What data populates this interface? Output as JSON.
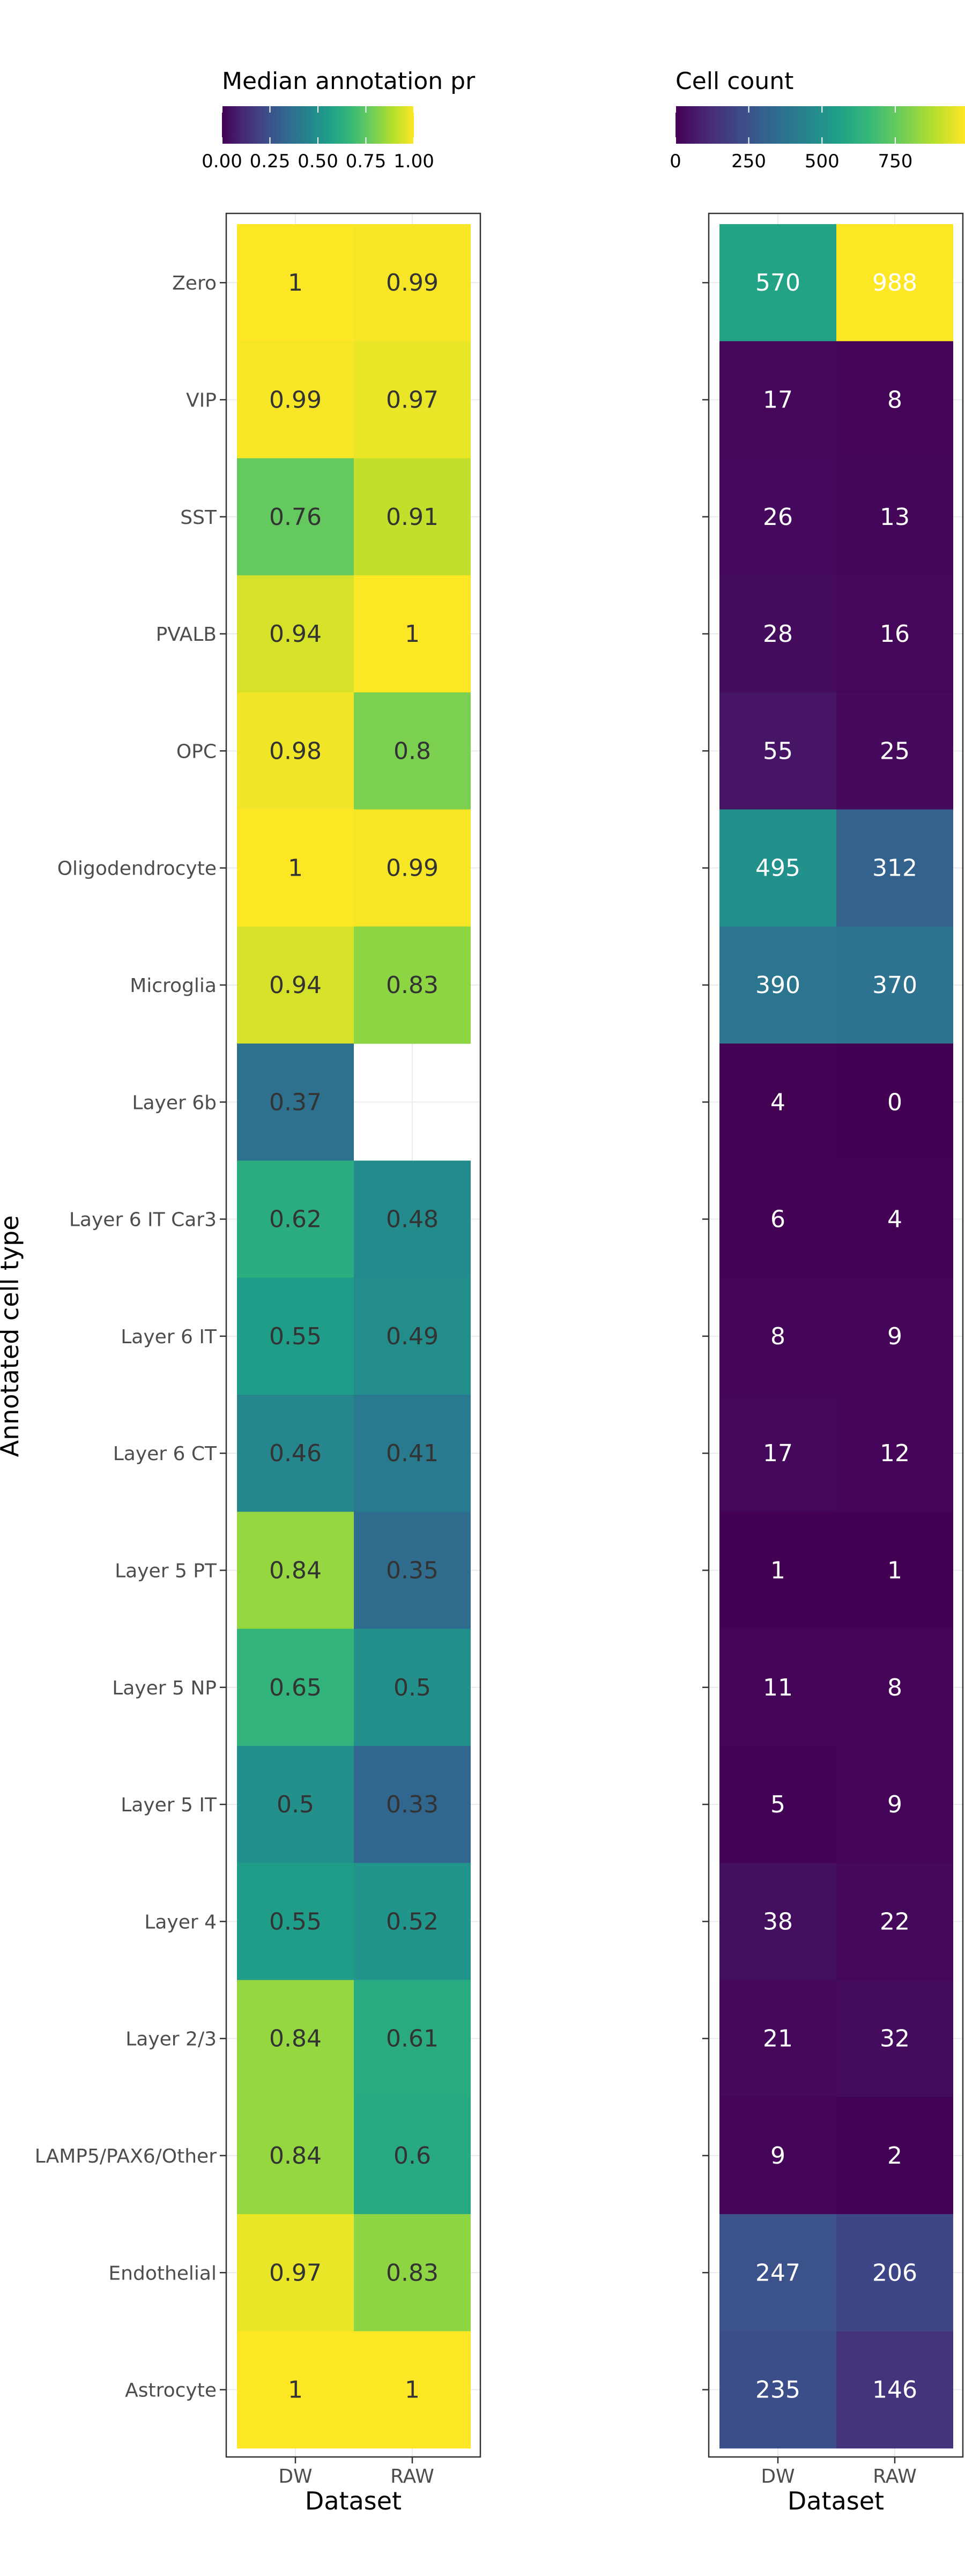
{
  "chart_data": [
    {
      "type": "heatmap",
      "title": "",
      "xlabel": "Dataset",
      "ylabel": "Annotated cell type",
      "x": [
        "DW",
        "RAW"
      ],
      "y": [
        "Zero",
        "VIP",
        "SST",
        "PVALB",
        "OPC",
        "Oligodendrocyte",
        "Microglia",
        "Layer 6b",
        "Layer 6 IT Car3",
        "Layer 6 IT",
        "Layer 6 CT",
        "Layer 5 PT",
        "Layer 5 NP",
        "Layer 5 IT",
        "Layer 4",
        "Layer 2/3",
        "LAMP5/PAX6/Other",
        "Endothelial",
        "Astrocyte"
      ],
      "values": [
        [
          1,
          0.99
        ],
        [
          0.99,
          0.97
        ],
        [
          0.76,
          0.91
        ],
        [
          0.94,
          1
        ],
        [
          0.98,
          0.8
        ],
        [
          1,
          0.99
        ],
        [
          0.94,
          0.83
        ],
        [
          0.37,
          null
        ],
        [
          0.62,
          0.48
        ],
        [
          0.55,
          0.49
        ],
        [
          0.46,
          0.41
        ],
        [
          0.84,
          0.35
        ],
        [
          0.65,
          0.5
        ],
        [
          0.5,
          0.33
        ],
        [
          0.55,
          0.52
        ],
        [
          0.84,
          0.61
        ],
        [
          0.84,
          0.6
        ],
        [
          0.97,
          0.83
        ],
        [
          1,
          1
        ]
      ],
      "labels": [
        [
          "1",
          "0.99"
        ],
        [
          "0.99",
          "0.97"
        ],
        [
          "0.76",
          "0.91"
        ],
        [
          "0.94",
          "1"
        ],
        [
          "0.98",
          "0.8"
        ],
        [
          "1",
          "0.99"
        ],
        [
          "0.94",
          "0.83"
        ],
        [
          "0.37",
          ""
        ],
        [
          "0.62",
          "0.48"
        ],
        [
          "0.55",
          "0.49"
        ],
        [
          "0.46",
          "0.41"
        ],
        [
          "0.84",
          "0.35"
        ],
        [
          "0.65",
          "0.5"
        ],
        [
          "0.5",
          "0.33"
        ],
        [
          "0.55",
          "0.52"
        ],
        [
          "0.84",
          "0.61"
        ],
        [
          "0.84",
          "0.6"
        ],
        [
          "0.97",
          "0.83"
        ],
        [
          "1",
          "1"
        ]
      ],
      "legend": {
        "title": "Median annotation pr",
        "range": [
          0,
          1
        ],
        "ticks": [
          0,
          0.25,
          0.5,
          0.75,
          1
        ],
        "tick_labels": [
          "0.00",
          "0.25",
          "0.50",
          "0.75",
          "1.00"
        ],
        "placement": "top"
      },
      "label_color": "#333333",
      "grid": true
    },
    {
      "type": "heatmap",
      "title": "",
      "xlabel": "Dataset",
      "ylabel": "",
      "x": [
        "DW",
        "RAW"
      ],
      "y": [
        "Zero",
        "VIP",
        "SST",
        "PVALB",
        "OPC",
        "Oligodendrocyte",
        "Microglia",
        "Layer 6b",
        "Layer 6 IT Car3",
        "Layer 6 IT",
        "Layer 6 CT",
        "Layer 5 PT",
        "Layer 5 NP",
        "Layer 5 IT",
        "Layer 4",
        "Layer 2/3",
        "LAMP5/PAX6/Other",
        "Endothelial",
        "Astrocyte"
      ],
      "values": [
        [
          570,
          988
        ],
        [
          17,
          8
        ],
        [
          26,
          13
        ],
        [
          28,
          16
        ],
        [
          55,
          25
        ],
        [
          495,
          312
        ],
        [
          390,
          370
        ],
        [
          4,
          0
        ],
        [
          6,
          4
        ],
        [
          8,
          9
        ],
        [
          17,
          12
        ],
        [
          1,
          1
        ],
        [
          11,
          8
        ],
        [
          5,
          9
        ],
        [
          38,
          22
        ],
        [
          21,
          32
        ],
        [
          9,
          2
        ],
        [
          247,
          206
        ],
        [
          235,
          146
        ]
      ],
      "labels": [
        [
          "570",
          "988"
        ],
        [
          "17",
          "8"
        ],
        [
          "26",
          "13"
        ],
        [
          "28",
          "16"
        ],
        [
          "55",
          "25"
        ],
        [
          "495",
          "312"
        ],
        [
          "390",
          "370"
        ],
        [
          "4",
          "0"
        ],
        [
          "6",
          "4"
        ],
        [
          "8",
          "9"
        ],
        [
          "17",
          "12"
        ],
        [
          "1",
          "1"
        ],
        [
          "11",
          "8"
        ],
        [
          "5",
          "9"
        ],
        [
          "38",
          "22"
        ],
        [
          "21",
          "32"
        ],
        [
          "9",
          "2"
        ],
        [
          "247",
          "206"
        ],
        [
          "235",
          "146"
        ]
      ],
      "legend": {
        "title": "Cell count",
        "range": [
          0,
          988
        ],
        "ticks": [
          0,
          250,
          500,
          750
        ],
        "tick_labels": [
          "0",
          "250",
          "500",
          "750"
        ],
        "placement": "top"
      },
      "label_color": "#ffffff",
      "grid": true
    }
  ],
  "colors": {
    "viridis": [
      "#440154",
      "#482878",
      "#3E4A89",
      "#31688E",
      "#26828E",
      "#1F9E89",
      "#35B779",
      "#6DCD59",
      "#B4DE2C",
      "#FDE725"
    ],
    "panel_border": "#333333",
    "grid": "#ebebeb",
    "axis_text": "#4d4d4d",
    "title_text": "#000000"
  }
}
